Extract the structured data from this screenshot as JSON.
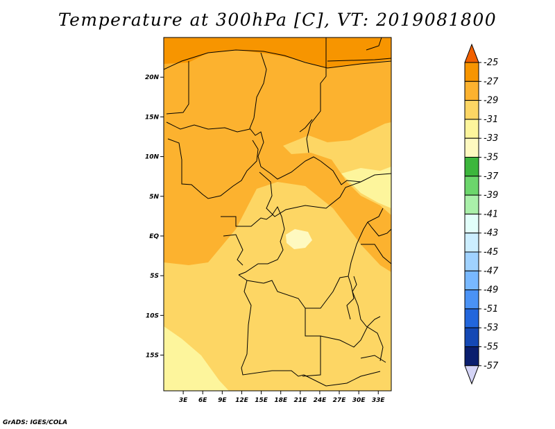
{
  "title": "Temperature at 300hPa [C], VT: 2019081800",
  "credit": "GrADS: IGES/COLA",
  "map": {
    "lon_ticks": [
      "3E",
      "6E",
      "9E",
      "12E",
      "15E",
      "18E",
      "21E",
      "24E",
      "27E",
      "30E",
      "33E"
    ],
    "lat_ticks": [
      "20N",
      "15N",
      "10N",
      "5N",
      "EQ",
      "5S",
      "10S",
      "15S"
    ],
    "lon_range": [
      0,
      35
    ],
    "lat_range": [
      -19.5,
      25
    ]
  },
  "legend": {
    "levels": [
      "-25",
      "-27",
      "-29",
      "-31",
      "-33",
      "-35",
      "-37",
      "-39",
      "-41",
      "-43",
      "-45",
      "-47",
      "-49",
      "-51",
      "-53",
      "-55",
      "-57"
    ],
    "colors": [
      "#f16000",
      "#f79500",
      "#fcb22f",
      "#fdd664",
      "#fdf59c",
      "#fef9c0",
      "#3cb63c",
      "#6cd66c",
      "#aaf0aa",
      "#e2fffa",
      "#cceeff",
      "#a0d2ff",
      "#78b8ff",
      "#4a92f5",
      "#2266dc",
      "#1448b4",
      "#0a1e6e",
      "#d4d4f6"
    ]
  }
}
